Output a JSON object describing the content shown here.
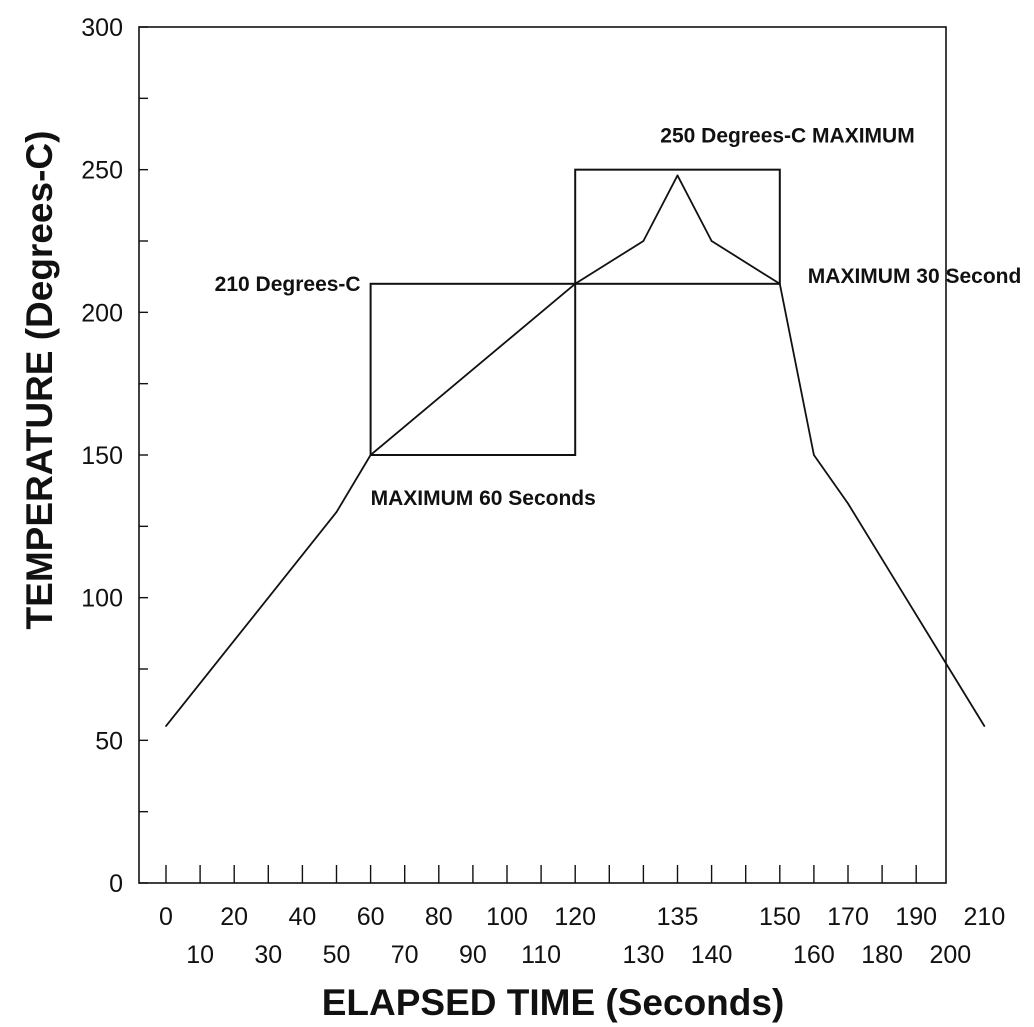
{
  "chart_data": {
    "type": "line",
    "title": "",
    "xlabel": "ELAPSED TIME (Seconds)",
    "ylabel": "TEMPERATURE (Degrees-C)",
    "ylim": [
      0,
      300
    ],
    "yticks": [
      "0",
      "50",
      "100",
      "150",
      "200",
      "250",
      "300"
    ],
    "xticks_row1": [
      "0",
      "20",
      "40",
      "60",
      "80",
      "100",
      "120",
      "135",
      "150",
      "170",
      "190",
      "210"
    ],
    "xticks_row2": [
      "10",
      "30",
      "50",
      "70",
      "90",
      "110",
      "130",
      "140",
      "160",
      "180",
      "200"
    ],
    "grid": false,
    "series": [
      {
        "points": [
          [
            0,
            55
          ],
          [
            50,
            130
          ],
          [
            60,
            150
          ],
          [
            120,
            210
          ],
          [
            130,
            225
          ],
          [
            135,
            248
          ],
          [
            140,
            225
          ],
          [
            150,
            210
          ],
          [
            160,
            150
          ],
          [
            170,
            133
          ],
          [
            210,
            55
          ]
        ]
      }
    ],
    "regions": [
      {
        "x_from": 60,
        "x_to": 120,
        "y_from": 150,
        "y_to": 210
      },
      {
        "x_from": 120,
        "x_to": 150,
        "y_from": 210,
        "y_to": 250
      }
    ],
    "annotations": [
      {
        "text": "250 Degrees-C MAXIMUM",
        "x": 135,
        "y": 250
      },
      {
        "text": "210 Degrees-C",
        "x": 60,
        "y": 210
      },
      {
        "text": "MAXIMUM 30 Second",
        "x": 150,
        "y": 210
      },
      {
        "text": "MAXIMUM 60 Seconds",
        "x": 60,
        "y": 150
      }
    ]
  }
}
